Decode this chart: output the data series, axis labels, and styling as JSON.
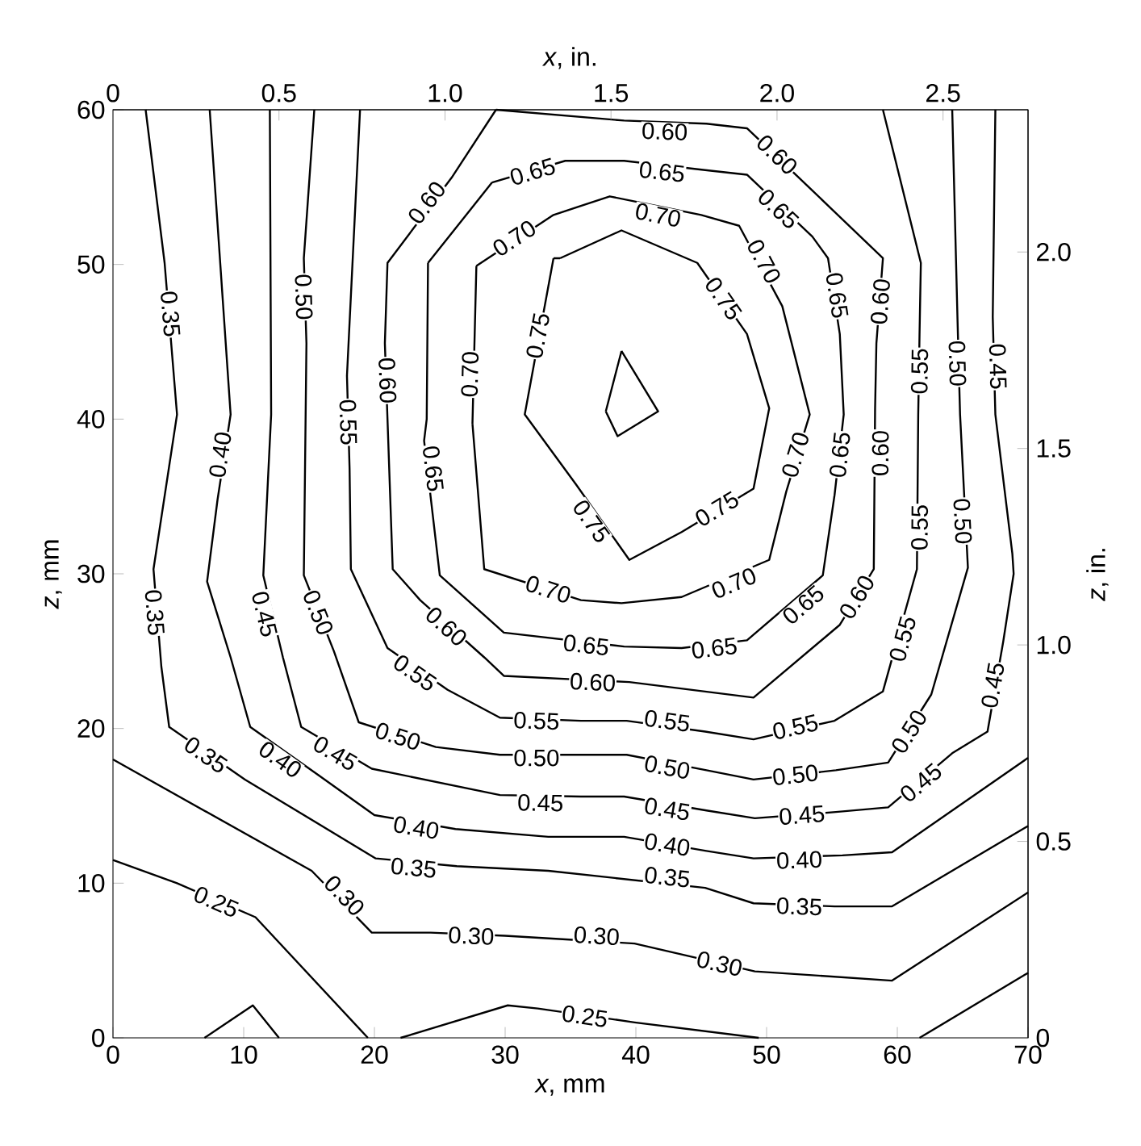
{
  "chart_data": {
    "type": "line",
    "xlabel": "*x*, mm",
    "ylabel": "*z*, mm",
    "x2label": "*x*, in.",
    "y2label": "*z*, in.",
    "xlim": [
      0,
      70
    ],
    "ylim": [
      0,
      60
    ],
    "xticks": [
      0,
      10,
      20,
      30,
      40,
      50,
      60,
      70
    ],
    "yticks": [
      0,
      10,
      20,
      30,
      40,
      50,
      60
    ],
    "x2lim": [
      0,
      2.756
    ],
    "x2ticks": [
      0,
      0.5,
      {
        "value": 1,
        "label": "1.0"
      },
      1.5,
      {
        "value": 2,
        "label": "2.0"
      },
      2.5
    ],
    "y2lim": [
      0,
      2.362
    ],
    "y2ticks": [
      0,
      0.5,
      {
        "value": 1,
        "label": "1.0"
      },
      1.5,
      {
        "value": 2,
        "label": "2.0"
      }
    ],
    "series": [
      {
        "color": "#000000",
        "x": [
          0,
          4.9,
          10.9,
          19.5
        ],
        "values": [
          11.5,
          10,
          7.8,
          0
        ]
      },
      {
        "color": "#000000",
        "x": [
          7,
          10.7,
          12.7
        ],
        "values": [
          0,
          2.1,
          0
        ]
      },
      {
        "color": "#000000",
        "x": [
          22,
          30.2,
          32.5,
          39.9,
          49.4
        ],
        "values": [
          0,
          2.1,
          1.9,
          1.0,
          0
        ]
      },
      {
        "color": "#000000",
        "x": [
          61.7,
          70
        ],
        "values": [
          0,
          4.2
        ]
      },
      {
        "color": "#000000",
        "x": [
          0,
          15.2,
          19.8,
          24.3,
          30,
          39.9,
          49.1,
          59.6,
          70
        ],
        "values": [
          18,
          10.8,
          6.8,
          6.8,
          6.6,
          6.1,
          4.3,
          3.7,
          9.4
        ]
      },
      {
        "color": "#000000",
        "x": [
          2.5,
          3.95,
          4.9,
          3.1,
          3.7,
          4.3,
          10.1,
          20.1,
          26.3,
          33.3,
          45.3,
          49,
          55.2,
          59.6,
          70
        ],
        "values": [
          60,
          50.1,
          40.3,
          30.3,
          24,
          20.1,
          16.7,
          11.6,
          11.1,
          10.8,
          9.7,
          8.7,
          8.5,
          8.5,
          13.7
        ]
      },
      {
        "color": "#000000",
        "x": [
          7.4,
          9,
          8,
          7.2,
          9,
          10.5,
          15.7,
          20,
          26.2,
          33.3,
          39.1,
          45.3,
          49,
          55.8,
          59.6,
          70
        ],
        "values": [
          60,
          40.3,
          34.8,
          29.5,
          24.6,
          20.1,
          17,
          14.4,
          13.5,
          13,
          13,
          12.1,
          11.6,
          11.8,
          12,
          18.1
        ]
      },
      {
        "color": "#000000",
        "x": [
          12,
          12.1,
          11.5,
          13,
          14.4,
          19.8,
          29.6,
          35.8,
          39.1,
          45.4,
          49.1,
          55.3,
          59.3,
          64.2,
          66.9,
          68.1,
          68.9,
          68.8,
          67.5,
          67.3,
          67.5
        ],
        "values": [
          60,
          40.3,
          29.9,
          24.6,
          20.1,
          17.4,
          15.7,
          15.6,
          15.6,
          14.7,
          14.2,
          14.6,
          14.9,
          18.4,
          19.8,
          25.6,
          30,
          31.3,
          40.3,
          46.6,
          60
        ]
      },
      {
        "color": "#000000",
        "x": [
          15.4,
          14.6,
          14.8,
          14.6,
          16.9,
          18.8,
          24.7,
          29.6,
          35.8,
          39.3,
          45.4,
          49,
          55.3,
          59.3,
          62.6,
          65.4,
          64.8,
          64.6,
          64.2
        ],
        "values": [
          60,
          50.4,
          44.9,
          29.9,
          25,
          20.4,
          18.8,
          18.3,
          18.3,
          18.3,
          17.3,
          16.7,
          17.3,
          17.8,
          22.2,
          30.4,
          40.3,
          46.6,
          60
        ]
      },
      {
        "color": "#000000",
        "x": [
          18.9,
          17.9,
          18.1,
          18.2,
          21,
          25.6,
          29.6,
          35.8,
          39.3,
          45.3,
          49,
          55.2,
          58.9,
          61.5,
          61.6,
          61.7,
          61.8,
          58.9
        ],
        "values": [
          60,
          42.8,
          36.8,
          30.3,
          25.2,
          22.5,
          20.7,
          20.5,
          20.5,
          19.8,
          19.3,
          20.5,
          22.4,
          30.3,
          40.3,
          45.5,
          50.1,
          60
        ]
      },
      {
        "color": "#000000",
        "x": [
          29.3,
          25.9,
          21,
          20.8,
          21,
          21.4,
          23.5,
          28.4,
          29.9,
          39.5,
          49,
          55.6,
          58.2,
          58.3,
          58.4,
          58.9,
          53.1,
          48.5,
          45.4,
          39.1,
          null,
          39.1,
          29.3
        ],
        "values": [
          60,
          55.6,
          50.1,
          44.9,
          40,
          30.3,
          28.3,
          24.6,
          23.4,
          23,
          22,
          26.7,
          30.3,
          40.7,
          44.9,
          50.4,
          55.1,
          58.8,
          59.1,
          59.3,
          null,
          59.3,
          60
        ]
      },
      {
        "color": "#000000",
        "x": [
          29,
          34.6,
          39.1,
          45.3,
          48.5,
          53.5,
          54.7,
          55.6,
          55.9,
          55.2,
          54.3,
          48.5,
          43.5,
          39.1,
          29.9,
          25,
          23.8,
          24,
          24.1,
          null,
          24.1,
          29
        ],
        "values": [
          55.3,
          56.7,
          56.7,
          56.1,
          55.8,
          51.8,
          50.4,
          45.5,
          40.3,
          35.1,
          29.9,
          25.7,
          25.2,
          25.3,
          26.2,
          29.9,
          38.6,
          40,
          50.1,
          null,
          50.1,
          55.3
        ]
      },
      {
        "color": "#000000",
        "x": [
          27.8,
          33.7,
          38,
          45,
          47.9,
          51.2,
          53.3,
          51.5,
          50.2,
          43.5,
          38.9,
          35.8,
          28.4,
          27.5,
          null,
          27.5,
          27.8
        ],
        "values": [
          49.9,
          53.2,
          54.4,
          53.2,
          52.5,
          47.3,
          40.3,
          35.3,
          30.9,
          28.5,
          28.1,
          28.3,
          30.3,
          39.7,
          null,
          39.7,
          49.9
        ]
      },
      {
        "color": "#000000",
        "x": [
          33.7,
          31.5,
          35.4,
          39.5,
          43.5,
          49,
          50.2,
          48.5,
          44.7,
          38.9,
          34.2,
          null,
          34.2,
          33.7
        ],
        "values": [
          50.4,
          40.3,
          35.8,
          30.9,
          32.7,
          35.5,
          40.7,
          45.5,
          50.1,
          52.2,
          50.4,
          null,
          50.4,
          50.4
        ]
      },
      {
        "color": "#000000",
        "x": [
          38.9,
          41.7,
          38.6,
          37.7,
          null,
          37.7,
          38.9
        ],
        "values": [
          44.4,
          40.5,
          38.9,
          40.5,
          null,
          40.5,
          44.4
        ]
      }
    ],
    "annotations": [
      {
        "text": "0.25",
        "x": 7.9,
        "y": 8.8
      },
      {
        "text": "0.25",
        "x": 36.1,
        "y": 1.4
      },
      {
        "text": "0.30",
        "x": 17.7,
        "y": 9.2
      },
      {
        "text": "0.30",
        "x": 27.4,
        "y": 6.6
      },
      {
        "text": "0.30",
        "x": 37,
        "y": 6.6
      },
      {
        "text": "0.30",
        "x": 46.4,
        "y": 4.8
      },
      {
        "text": "0.35",
        "x": 4.4,
        "y": 46.8
      },
      {
        "text": "0.35",
        "x": 3.2,
        "y": 27.5
      },
      {
        "text": "0.35",
        "x": 7.1,
        "y": 18.3
      },
      {
        "text": "0.35",
        "x": 23,
        "y": 11
      },
      {
        "text": "0.35",
        "x": 42.4,
        "y": 10.4
      },
      {
        "text": "0.35",
        "x": 52.5,
        "y": 8.5
      },
      {
        "text": "0.40",
        "x": 8.2,
        "y": 37.7
      },
      {
        "text": "0.40",
        "x": 12.8,
        "y": 18
      },
      {
        "text": "0.40",
        "x": 23.2,
        "y": 13.6
      },
      {
        "text": "0.40",
        "x": 42.4,
        "y": 12.5
      },
      {
        "text": "0.40",
        "x": 52.5,
        "y": 11.5
      },
      {
        "text": "0.45",
        "x": 11.6,
        "y": 27.4
      },
      {
        "text": "0.45",
        "x": 17,
        "y": 18.4
      },
      {
        "text": "0.45",
        "x": 32.7,
        "y": 15.2
      },
      {
        "text": "0.45",
        "x": 42.4,
        "y": 14.8
      },
      {
        "text": "0.45",
        "x": 52.7,
        "y": 14.4
      },
      {
        "text": "0.45",
        "x": 61.8,
        "y": 16.5
      },
      {
        "text": "0.45",
        "x": 67.3,
        "y": 22.8
      },
      {
        "text": "0.45",
        "x": 67.7,
        "y": 43.4
      },
      {
        "text": "0.50",
        "x": 14.6,
        "y": 47.9
      },
      {
        "text": "0.50",
        "x": 15.7,
        "y": 27.5
      },
      {
        "text": "0.50",
        "x": 21.8,
        "y": 19.5
      },
      {
        "text": "0.50",
        "x": 32.4,
        "y": 18.1
      },
      {
        "text": "0.50",
        "x": 42.4,
        "y": 17.5
      },
      {
        "text": "0.50",
        "x": 52.2,
        "y": 17
      },
      {
        "text": "0.50",
        "x": 60.9,
        "y": 19.8
      },
      {
        "text": "0.50",
        "x": 64.6,
        "y": 43.6
      },
      {
        "text": "0.50",
        "x": 65,
        "y": 33.4
      },
      {
        "text": "0.55",
        "x": 18,
        "y": 39.8
      },
      {
        "text": "0.55",
        "x": 23.1,
        "y": 23.6
      },
      {
        "text": "0.55",
        "x": 32.4,
        "y": 20.5
      },
      {
        "text": "0.55",
        "x": 42.4,
        "y": 20.5
      },
      {
        "text": "0.55",
        "x": 52.2,
        "y": 20.1
      },
      {
        "text": "0.55",
        "x": 60.4,
        "y": 25.8
      },
      {
        "text": "0.55",
        "x": 61.7,
        "y": 43.1
      },
      {
        "text": "0.55",
        "x": 61.7,
        "y": 33
      },
      {
        "text": "0.60",
        "x": 24,
        "y": 54
      },
      {
        "text": "0.60",
        "x": 21,
        "y": 42.5
      },
      {
        "text": "0.60",
        "x": 25.5,
        "y": 26.6
      },
      {
        "text": "0.60",
        "x": 36.7,
        "y": 23
      },
      {
        "text": "0.60",
        "x": 56.9,
        "y": 28.5
      },
      {
        "text": "0.60",
        "x": 58.7,
        "y": 37.8
      },
      {
        "text": "0.60",
        "x": 58.7,
        "y": 47.6
      },
      {
        "text": "0.60",
        "x": 50.8,
        "y": 57.1
      },
      {
        "text": "0.60",
        "x": 42.2,
        "y": 58.6
      },
      {
        "text": "0.65",
        "x": 32.1,
        "y": 56
      },
      {
        "text": "0.65",
        "x": 42,
        "y": 56
      },
      {
        "text": "0.65",
        "x": 50.9,
        "y": 53.6
      },
      {
        "text": "0.65",
        "x": 55.4,
        "y": 48
      },
      {
        "text": "0.65",
        "x": 55.6,
        "y": 37.7
      },
      {
        "text": "0.65",
        "x": 52.8,
        "y": 28
      },
      {
        "text": "0.65",
        "x": 46,
        "y": 25.2
      },
      {
        "text": "0.65",
        "x": 36.2,
        "y": 25.4
      },
      {
        "text": "0.65",
        "x": 24.5,
        "y": 36.8
      },
      {
        "text": "0.70",
        "x": 30.7,
        "y": 51.7
      },
      {
        "text": "0.70",
        "x": 41.7,
        "y": 53.2
      },
      {
        "text": "0.70",
        "x": 49.8,
        "y": 50.2
      },
      {
        "text": "0.70",
        "x": 52.2,
        "y": 37.7
      },
      {
        "text": "0.70",
        "x": 47.5,
        "y": 29.4
      },
      {
        "text": "0.70",
        "x": 33.3,
        "y": 29
      },
      {
        "text": "0.70",
        "x": 27.3,
        "y": 42.9
      },
      {
        "text": "0.75",
        "x": 32.5,
        "y": 45.4
      },
      {
        "text": "0.75",
        "x": 36.6,
        "y": 33.4
      },
      {
        "text": "0.75",
        "x": 46.2,
        "y": 34.2
      },
      {
        "text": "0.75",
        "x": 46.7,
        "y": 47.8
      }
    ]
  }
}
